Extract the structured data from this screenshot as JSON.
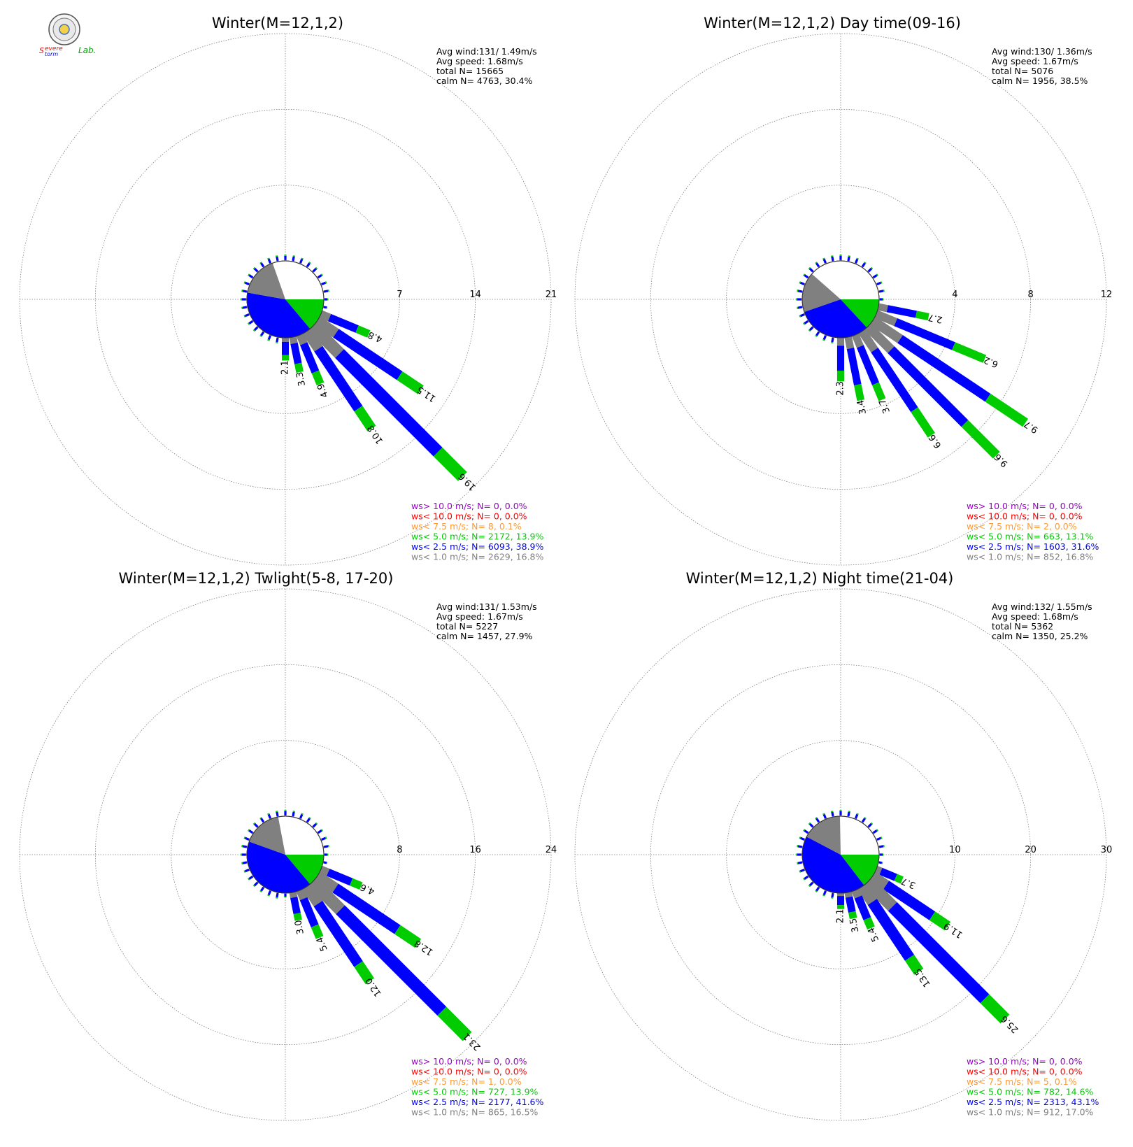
{
  "logo": {
    "text_s": "S",
    "text_evere": "evere",
    "text_torm": "torm",
    "text_lab": "Lab."
  },
  "colors": {
    "ws_gt10": "#9900cc",
    "ws_lt10": "#ff0000",
    "ws_lt75": "#ff9933",
    "ws_lt5": "#00cc00",
    "ws_lt25": "#0000ff",
    "ws_lt1": "#808080",
    "calm_fill": "#808080",
    "grid": "#808080"
  },
  "chart_data": [
    {
      "type": "windrose",
      "title": "Winter(M=12,1,2)",
      "stats": [
        "Avg wind:131/ 1.49m/s",
        "Avg speed: 1.68m/s",
        "total N=      15665",
        "calm N=   4763,  30.4%"
      ],
      "ring_labels": [
        "7",
        "14",
        "21"
      ],
      "rmax": 21,
      "calm_pct": 30.4,
      "speed_share": {
        "lt1": 16.8,
        "lt25": 38.9,
        "lt5": 13.9
      },
      "bars": [
        {
          "dir": 112.5,
          "total": 4.8,
          "label": "4.8",
          "blue": 0.7
        },
        {
          "dir": 123.75,
          "total": 11.5,
          "label": "11.5",
          "blue": 0.75
        },
        {
          "dir": 135,
          "total": 19.6,
          "label": "19.6",
          "blue": 0.8
        },
        {
          "dir": 146.25,
          "total": 10.8,
          "label": "10.8",
          "blue": 0.75
        },
        {
          "dir": 157.5,
          "total": 4.9,
          "label": "4.9",
          "blue": 0.7
        },
        {
          "dir": 168.75,
          "total": 3.3,
          "label": "3.3",
          "blue": 0.7
        },
        {
          "dir": 180,
          "total": 2.1,
          "label": "2.1",
          "blue": 0.7
        }
      ],
      "legend": [
        {
          "text": "ws> 10.0 m/s; N=      0,  0.0%",
          "color": "ws_gt10"
        },
        {
          "text": "ws< 10.0 m/s; N=      0,  0.0%",
          "color": "ws_lt10"
        },
        {
          "text": "ws<  7.5 m/s; N=      8,  0.1%",
          "color": "ws_lt75"
        },
        {
          "text": "ws<  5.0 m/s; N=  2172, 13.9%",
          "color": "ws_lt5"
        },
        {
          "text": "ws<  2.5 m/s; N=  6093, 38.9%",
          "color": "ws_lt25"
        },
        {
          "text": "ws<  1.0 m/s; N=  2629, 16.8%",
          "color": "ws_lt1"
        }
      ]
    },
    {
      "type": "windrose",
      "title": "Winter(M=12,1,2) Day time(09-16)",
      "stats": [
        "Avg wind:130/ 1.36m/s",
        "Avg speed: 1.67m/s",
        "total N=        5076",
        "calm N=   1956,  38.5%"
      ],
      "ring_labels": [
        "4",
        "8",
        "12"
      ],
      "rmax": 12,
      "calm_pct": 38.5,
      "speed_share": {
        "lt1": 16.8,
        "lt25": 31.6,
        "lt5": 13.1
      },
      "bars": [
        {
          "dir": 101.25,
          "total": 2.7,
          "label": "2.7",
          "blue": 0.7
        },
        {
          "dir": 112.5,
          "total": 6.2,
          "label": "6.2",
          "blue": 0.65
        },
        {
          "dir": 123.75,
          "total": 9.7,
          "label": "9.7",
          "blue": 0.7
        },
        {
          "dir": 135,
          "total": 9.6,
          "label": "9.6",
          "blue": 0.7
        },
        {
          "dir": 146.25,
          "total": 6.6,
          "label": "6.6",
          "blue": 0.7
        },
        {
          "dir": 157.5,
          "total": 3.7,
          "label": "3.7",
          "blue": 0.7
        },
        {
          "dir": 168.75,
          "total": 3.4,
          "label": "3.4",
          "blue": 0.7
        },
        {
          "dir": 180,
          "total": 2.3,
          "label": "2.3",
          "blue": 0.7
        }
      ],
      "legend": [
        {
          "text": "ws> 10.0 m/s; N=      0,  0.0%",
          "color": "ws_gt10"
        },
        {
          "text": "ws< 10.0 m/s; N=      0,  0.0%",
          "color": "ws_lt10"
        },
        {
          "text": "ws<  7.5 m/s; N=      2,  0.0%",
          "color": "ws_lt75"
        },
        {
          "text": "ws<  5.0 m/s; N=    663, 13.1%",
          "color": "ws_lt5"
        },
        {
          "text": "ws<  2.5 m/s; N=  1603, 31.6%",
          "color": "ws_lt25"
        },
        {
          "text": "ws<  1.0 m/s; N=    852, 16.8%",
          "color": "ws_lt1"
        }
      ]
    },
    {
      "type": "windrose",
      "title": "Winter(M=12,1,2) Twlight(5-8, 17-20)",
      "stats": [
        "Avg wind:131/ 1.53m/s",
        "Avg speed: 1.67m/s",
        "total N=        5227",
        "calm N=   1457,  27.9%"
      ],
      "ring_labels": [
        "8",
        "16",
        "24"
      ],
      "rmax": 24,
      "calm_pct": 27.9,
      "speed_share": {
        "lt1": 16.5,
        "lt25": 41.6,
        "lt5": 13.9
      },
      "bars": [
        {
          "dir": 112.5,
          "total": 4.6,
          "label": "4.6",
          "blue": 0.7
        },
        {
          "dir": 123.75,
          "total": 12.8,
          "label": "12.8",
          "blue": 0.75
        },
        {
          "dir": 135,
          "total": 23.1,
          "label": "23.1",
          "blue": 0.8
        },
        {
          "dir": 146.25,
          "total": 12.0,
          "label": "12.0",
          "blue": 0.78
        },
        {
          "dir": 157.5,
          "total": 5.4,
          "label": "5.4",
          "blue": 0.7
        },
        {
          "dir": 168.75,
          "total": 3.0,
          "label": "3.0",
          "blue": 0.7
        }
      ],
      "legend": [
        {
          "text": "ws> 10.0 m/s; N=      0,  0.0%",
          "color": "ws_gt10"
        },
        {
          "text": "ws< 10.0 m/s; N=      0,  0.0%",
          "color": "ws_lt10"
        },
        {
          "text": "ws<  7.5 m/s; N=      1,  0.0%",
          "color": "ws_lt75"
        },
        {
          "text": "ws<  5.0 m/s; N=    727, 13.9%",
          "color": "ws_lt5"
        },
        {
          "text": "ws<  2.5 m/s; N=  2177, 41.6%",
          "color": "ws_lt25"
        },
        {
          "text": "ws<  1.0 m/s; N=    865, 16.5%",
          "color": "ws_lt1"
        }
      ]
    },
    {
      "type": "windrose",
      "title": "Winter(M=12,1,2) Night time(21-04)",
      "stats": [
        "Avg wind:132/ 1.55m/s",
        "Avg speed: 1.68m/s",
        "total N=        5362",
        "calm N=   1350,  25.2%"
      ],
      "ring_labels": [
        "10",
        "20",
        "30"
      ],
      "rmax": 30,
      "calm_pct": 25.2,
      "speed_share": {
        "lt1": 17.0,
        "lt25": 43.1,
        "lt5": 14.6
      },
      "bars": [
        {
          "dir": 112.5,
          "total": 3.7,
          "label": "3.7",
          "blue": 0.7
        },
        {
          "dir": 123.75,
          "total": 11.9,
          "label": "11.9",
          "blue": 0.75
        },
        {
          "dir": 135,
          "total": 25.6,
          "label": "25.6",
          "blue": 0.82
        },
        {
          "dir": 146.25,
          "total": 13.5,
          "label": "13.5",
          "blue": 0.8
        },
        {
          "dir": 157.5,
          "total": 5.4,
          "label": "5.4",
          "blue": 0.7
        },
        {
          "dir": 168.75,
          "total": 3.5,
          "label": "3.5",
          "blue": 0.7
        },
        {
          "dir": 180,
          "total": 2.1,
          "label": "2.1",
          "blue": 0.7
        }
      ],
      "legend": [
        {
          "text": "ws> 10.0 m/s; N=      0,  0.0%",
          "color": "ws_gt10"
        },
        {
          "text": "ws< 10.0 m/s; N=      0,  0.0%",
          "color": "ws_lt10"
        },
        {
          "text": "ws<  7.5 m/s; N=      5,  0.1%",
          "color": "ws_lt75"
        },
        {
          "text": "ws<  5.0 m/s; N=    782, 14.6%",
          "color": "ws_lt5"
        },
        {
          "text": "ws<  2.5 m/s; N=  2313, 43.1%",
          "color": "ws_lt25"
        },
        {
          "text": "ws<  1.0 m/s; N=    912, 17.0%",
          "color": "ws_lt1"
        }
      ]
    }
  ]
}
